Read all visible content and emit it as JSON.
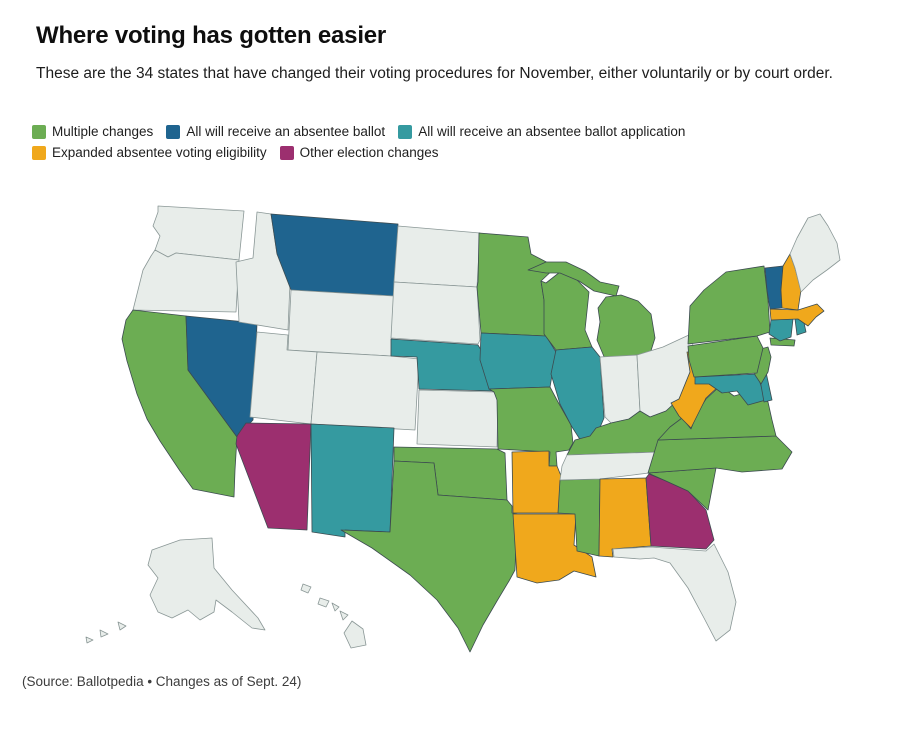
{
  "header": {
    "title": "Where voting has gotten easier",
    "subtitle": "These are the 34 states that have changed their voting procedures for November, either voluntarily or by court order."
  },
  "legend": {
    "items": [
      {
        "key": "multiple",
        "label": "Multiple changes",
        "color": "#6cad53"
      },
      {
        "key": "ballot",
        "label": "All will receive an absentee ballot",
        "color": "#1f648f"
      },
      {
        "key": "application",
        "label": "All will receive an absentee ballot application",
        "color": "#359aa0"
      },
      {
        "key": "expanded",
        "label": "Expanded absentee voting eligibility",
        "color": "#f0a81c"
      },
      {
        "key": "other",
        "label": "Other election changes",
        "color": "#9c2f6f"
      }
    ],
    "rows": [
      [
        "multiple",
        "ballot",
        "application"
      ],
      [
        "expanded",
        "other"
      ]
    ]
  },
  "map": {
    "no_change_color": "#e8edea",
    "border_color": "#3c4b50",
    "no_change_border_color": "#8a9796",
    "states": [
      {
        "id": "WA",
        "name": "Washington",
        "category": "none"
      },
      {
        "id": "OR",
        "name": "Oregon",
        "category": "none"
      },
      {
        "id": "CA",
        "name": "California",
        "category": "multiple"
      },
      {
        "id": "NV",
        "name": "Nevada",
        "category": "ballot"
      },
      {
        "id": "ID",
        "name": "Idaho",
        "category": "none"
      },
      {
        "id": "MT",
        "name": "Montana",
        "category": "ballot"
      },
      {
        "id": "WY",
        "name": "Wyoming",
        "category": "none"
      },
      {
        "id": "UT",
        "name": "Utah",
        "category": "none"
      },
      {
        "id": "CO",
        "name": "Colorado",
        "category": "none"
      },
      {
        "id": "AZ",
        "name": "Arizona",
        "category": "other"
      },
      {
        "id": "NM",
        "name": "New Mexico",
        "category": "application"
      },
      {
        "id": "ND",
        "name": "North Dakota",
        "category": "none"
      },
      {
        "id": "SD",
        "name": "South Dakota",
        "category": "none"
      },
      {
        "id": "NE",
        "name": "Nebraska",
        "category": "application"
      },
      {
        "id": "KS",
        "name": "Kansas",
        "category": "none"
      },
      {
        "id": "OK",
        "name": "Oklahoma",
        "category": "multiple"
      },
      {
        "id": "TX",
        "name": "Texas",
        "category": "multiple"
      },
      {
        "id": "MN",
        "name": "Minnesota",
        "category": "multiple"
      },
      {
        "id": "IA",
        "name": "Iowa",
        "category": "application"
      },
      {
        "id": "MO",
        "name": "Missouri",
        "category": "multiple"
      },
      {
        "id": "AR",
        "name": "Arkansas",
        "category": "expanded"
      },
      {
        "id": "LA",
        "name": "Louisiana",
        "category": "expanded"
      },
      {
        "id": "WI",
        "name": "Wisconsin",
        "category": "multiple"
      },
      {
        "id": "IL",
        "name": "Illinois",
        "category": "application"
      },
      {
        "id": "MS",
        "name": "Mississippi",
        "category": "multiple"
      },
      {
        "id": "MI",
        "name": "Michigan",
        "category": "multiple"
      },
      {
        "id": "IN",
        "name": "Indiana",
        "category": "none"
      },
      {
        "id": "OH",
        "name": "Ohio",
        "category": "none"
      },
      {
        "id": "KY",
        "name": "Kentucky",
        "category": "multiple"
      },
      {
        "id": "TN",
        "name": "Tennessee",
        "category": "none"
      },
      {
        "id": "AL",
        "name": "Alabama",
        "category": "expanded"
      },
      {
        "id": "GA",
        "name": "Georgia",
        "category": "other"
      },
      {
        "id": "FL",
        "name": "Florida",
        "category": "none"
      },
      {
        "id": "SC",
        "name": "South Carolina",
        "category": "multiple"
      },
      {
        "id": "NC",
        "name": "North Carolina",
        "category": "multiple"
      },
      {
        "id": "VA",
        "name": "Virginia",
        "category": "multiple"
      },
      {
        "id": "WV",
        "name": "West Virginia",
        "category": "expanded"
      },
      {
        "id": "MD",
        "name": "Maryland",
        "category": "application"
      },
      {
        "id": "DE",
        "name": "Delaware",
        "category": "application"
      },
      {
        "id": "NJ",
        "name": "New Jersey",
        "category": "multiple"
      },
      {
        "id": "PA",
        "name": "Pennsylvania",
        "category": "multiple"
      },
      {
        "id": "NY",
        "name": "New York",
        "category": "multiple"
      },
      {
        "id": "CT",
        "name": "Connecticut",
        "category": "application"
      },
      {
        "id": "RI",
        "name": "Rhode Island",
        "category": "application"
      },
      {
        "id": "MA",
        "name": "Massachusetts",
        "category": "expanded"
      },
      {
        "id": "VT",
        "name": "Vermont",
        "category": "ballot"
      },
      {
        "id": "NH",
        "name": "New Hampshire",
        "category": "expanded"
      },
      {
        "id": "ME",
        "name": "Maine",
        "category": "none"
      },
      {
        "id": "AK",
        "name": "Alaska",
        "category": "none"
      },
      {
        "id": "HI",
        "name": "Hawaii",
        "category": "none"
      }
    ]
  },
  "source": "(Source: Ballotpedia • Changes as of Sept. 24)"
}
